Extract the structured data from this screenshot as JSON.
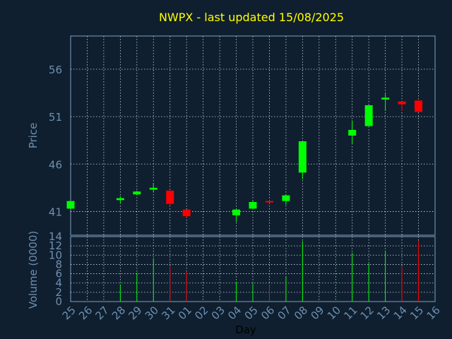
{
  "colors": {
    "background": "#0f1f2f",
    "frame": "#7f9fbf",
    "grid": "#c9d6e3",
    "title": "#ffff00",
    "axis_text": "#6f8fb0",
    "day_label": "#000000",
    "up": "#00ff00",
    "down": "#ff0000",
    "neutral": "#cc0000"
  },
  "chart_data": [
    {
      "type": "candlestick",
      "title": "NWPX - last updated 15/08/2025",
      "ylabel": "Price",
      "xlabel": "Day",
      "ylim": [
        38.5,
        59.5
      ],
      "yticks": [
        41,
        46,
        51,
        56
      ],
      "grid": true,
      "days": [
        "25",
        "26",
        "27",
        "28",
        "29",
        "30",
        "31",
        "01",
        "02",
        "03",
        "04",
        "05",
        "06",
        "07",
        "08",
        "09",
        "10",
        "11",
        "12",
        "13",
        "14",
        "15",
        "16"
      ],
      "candles": [
        {
          "day": "25",
          "open": 41.3,
          "close": 42.1,
          "high": 42.1,
          "low": 41.3
        },
        {
          "day": "28",
          "open": 42.2,
          "close": 42.4,
          "high": 42.6,
          "low": 41.9
        },
        {
          "day": "29",
          "open": 42.8,
          "close": 43.1,
          "high": 43.2,
          "low": 42.7
        },
        {
          "day": "30",
          "open": 43.3,
          "close": 43.5,
          "high": 44.0,
          "low": 43.0
        },
        {
          "day": "31",
          "open": 43.2,
          "close": 41.8,
          "high": 43.2,
          "low": 41.6
        },
        {
          "day": "01",
          "open": 41.2,
          "close": 40.5,
          "high": 41.2,
          "low": 40.4
        },
        {
          "day": "04",
          "open": 40.6,
          "close": 41.2,
          "high": 41.3,
          "low": 39.9
        },
        {
          "day": "05",
          "open": 41.3,
          "close": 42.0,
          "high": 42.1,
          "low": 41.2
        },
        {
          "day": "06",
          "open": 42.1,
          "close": 42.0,
          "high": 42.2,
          "low": 41.9
        },
        {
          "day": "07",
          "open": 42.1,
          "close": 42.7,
          "high": 42.8,
          "low": 41.7
        },
        {
          "day": "08",
          "open": 45.1,
          "close": 48.4,
          "high": 48.4,
          "low": 44.4
        },
        {
          "day": "11",
          "open": 49.0,
          "close": 49.6,
          "high": 50.6,
          "low": 48.1
        },
        {
          "day": "12",
          "open": 50.0,
          "close": 52.2,
          "high": 52.2,
          "low": 50.0
        },
        {
          "day": "13",
          "open": 52.8,
          "close": 53.0,
          "high": 53.4,
          "low": 51.6
        },
        {
          "day": "14",
          "open": 52.6,
          "close": 52.3,
          "high": 52.6,
          "low": 51.6
        },
        {
          "day": "15",
          "open": 52.7,
          "close": 51.5,
          "high": 52.7,
          "low": 51.5
        }
      ]
    },
    {
      "type": "bar",
      "ylabel": "Volume (0000)",
      "ylim": [
        0,
        14
      ],
      "yticks": [
        0,
        2,
        4,
        6,
        8,
        10,
        12,
        14
      ],
      "grid": true,
      "bars": [
        {
          "day": "28",
          "value": 3.7,
          "direction": "up"
        },
        {
          "day": "29",
          "value": 6.2,
          "direction": "up"
        },
        {
          "day": "30",
          "value": 9.3,
          "direction": "up"
        },
        {
          "day": "31",
          "value": 7.5,
          "direction": "down"
        },
        {
          "day": "01",
          "value": 6.6,
          "direction": "down"
        },
        {
          "day": "04",
          "value": 4.3,
          "direction": "up"
        },
        {
          "day": "05",
          "value": 3.9,
          "direction": "up"
        },
        {
          "day": "06",
          "value": 3.6,
          "direction": "down"
        },
        {
          "day": "07",
          "value": 5.4,
          "direction": "up"
        },
        {
          "day": "08",
          "value": 13.0,
          "direction": "up"
        },
        {
          "day": "11",
          "value": 10.5,
          "direction": "up"
        },
        {
          "day": "12",
          "value": 8.2,
          "direction": "up"
        },
        {
          "day": "13",
          "value": 11.0,
          "direction": "up"
        },
        {
          "day": "14",
          "value": 7.5,
          "direction": "down"
        },
        {
          "day": "15",
          "value": 13.1,
          "direction": "down"
        }
      ]
    }
  ]
}
